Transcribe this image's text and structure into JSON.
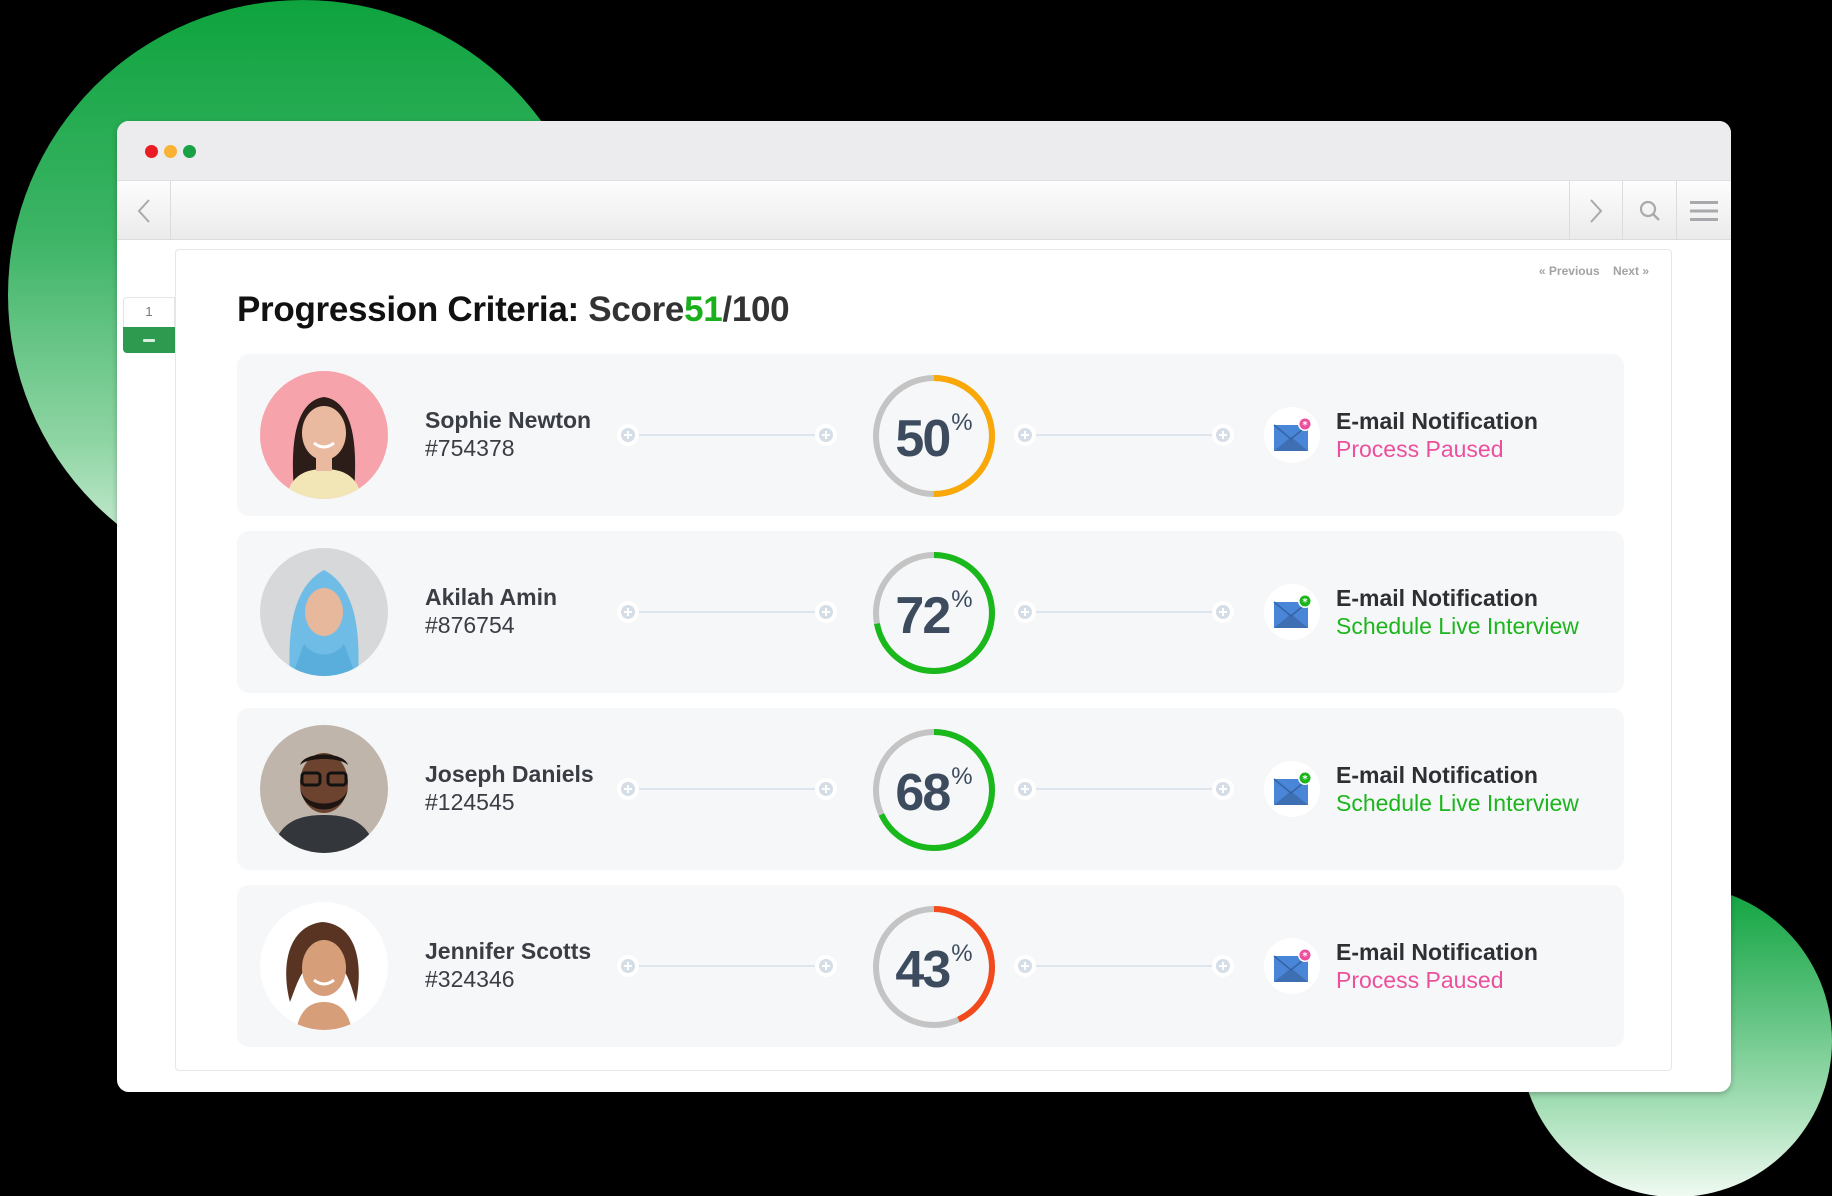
{
  "window": {
    "traffic_lights": {
      "close": "#ea1c24",
      "minimize": "#f9b233",
      "maximize": "#18a145"
    },
    "toolbar": {
      "back_icon": "chevron-left-icon",
      "forward_icon": "chevron-right-icon",
      "search_icon": "search-icon",
      "menu_icon": "hamburger-menu-icon"
    }
  },
  "side_tab": {
    "number": "1",
    "collapse_icon": "minus-icon"
  },
  "pager": {
    "previous": "« Previous",
    "next": "Next »"
  },
  "header": {
    "title": "Progression Criteria:",
    "score_label": "Score",
    "score_value": "51",
    "score_total": "/100",
    "score_color": "#19b01b"
  },
  "colors": {
    "ring_track": "#c4c4c4",
    "orange": "#f9a806",
    "green": "#19b81b",
    "red": "#f24a1c",
    "pink": "#ec4f9c",
    "status_green": "#1cb51c"
  },
  "candidates": [
    {
      "name": "Sophie Newton",
      "id": "#754378",
      "percent": "50",
      "percent_value": 50,
      "sign": "%",
      "ring_color": "#f9a806",
      "notification_title": "E-mail Notification",
      "status": "Process Paused",
      "status_color": "#ec4f9c",
      "badge_color": "#ec4f9c",
      "avatar_bg": "#f6a3ac"
    },
    {
      "name": "Akilah Amin",
      "id": "#876754",
      "percent": "72",
      "percent_value": 72,
      "sign": "%",
      "ring_color": "#19b81b",
      "notification_title": "E-mail Notification",
      "status": "Schedule Live Interview",
      "status_color": "#1cb51c",
      "badge_color": "#1cb51c",
      "avatar_bg": "#d7d8da"
    },
    {
      "name": "Joseph Daniels",
      "id": "#124545",
      "percent": "68",
      "percent_value": 68,
      "sign": "%",
      "ring_color": "#19b81b",
      "notification_title": "E-mail Notification",
      "status": "Schedule Live Interview",
      "status_color": "#1cb51c",
      "badge_color": "#1cb51c",
      "avatar_bg": "#bfb5aa"
    },
    {
      "name": "Jennifer Scotts",
      "id": "#324346",
      "percent": "43",
      "percent_value": 43,
      "sign": "%",
      "ring_color": "#f24a1c",
      "notification_title": "E-mail Notification",
      "status": "Process Paused",
      "status_color": "#ec4f9c",
      "badge_color": "#ec4f9c",
      "avatar_bg": "#ffffff"
    }
  ]
}
